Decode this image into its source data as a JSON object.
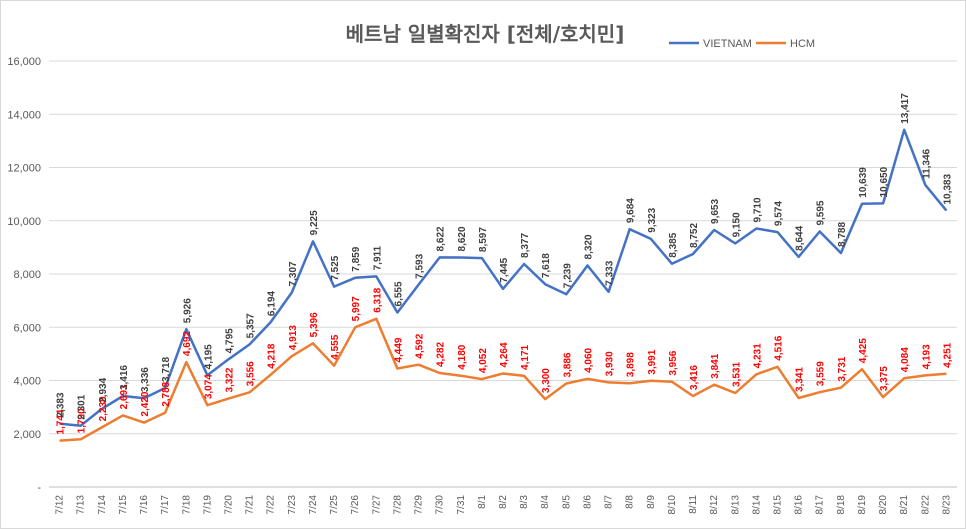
{
  "chart_data": {
    "type": "line",
    "title": "베트남  일별확진자 [전체/호치민]",
    "xlabel": "",
    "ylabel": "",
    "ylim": [
      0,
      16000
    ],
    "yticks": [
      "-",
      "2,000",
      "4,000",
      "6,000",
      "8,000",
      "10,000",
      "12,000",
      "14,000",
      "16,000"
    ],
    "grid": "horizontal",
    "legend_position": "top-right",
    "categories": [
      "7/12",
      "7/13",
      "7/14",
      "7/15",
      "7/16",
      "7/17",
      "7/18",
      "7/19",
      "7/20",
      "7/21",
      "7/22",
      "7/23",
      "7/24",
      "7/25",
      "7/26",
      "7/27",
      "7/28",
      "7/29",
      "7/30",
      "7/31",
      "8/1",
      "8/2",
      "8/3",
      "8/4",
      "8/5",
      "8/6",
      "8/7",
      "8/8",
      "8/9",
      "8/10",
      "8/11",
      "8/12",
      "8/13",
      "8/14",
      "8/15",
      "8/16",
      "8/17",
      "8/18",
      "8/19",
      "8/20",
      "8/21",
      "8/22",
      "8/23"
    ],
    "series": [
      {
        "name": "VIETNAM",
        "color": "#4472c4",
        "values": [
          2383,
          2301,
          2934,
          3416,
          3336,
          3718,
          5926,
          4195,
          4795,
          5357,
          6194,
          7307,
          9225,
          7525,
          7859,
          7911,
          6555,
          7593,
          8622,
          8620,
          8597,
          7445,
          8377,
          7618,
          7239,
          8320,
          7333,
          9684,
          9323,
          8385,
          8752,
          9653,
          9150,
          9710,
          9574,
          8644,
          9595,
          8788,
          10639,
          10650,
          13417,
          11346,
          10383
        ],
        "labels": [
          "2,383",
          "2,301",
          "2,934",
          "3,416",
          "3,336",
          "3,718",
          "5,926",
          "4,195",
          "4,795",
          "5,357",
          "6,194",
          "7,307",
          "9,225",
          "7,525",
          "7,859",
          "7,911",
          "6,555",
          "7,593",
          "8,622",
          "8,620",
          "8,597",
          "7,445",
          "8,377",
          "7,618",
          "7,239",
          "8,320",
          "7,333",
          "9,684",
          "9,323",
          "8,385",
          "8,752",
          "9,653",
          "9,150",
          "9,710",
          "9,574",
          "8,644",
          "9,595",
          "8,788",
          "10,639",
          "10,650",
          "13,417",
          "11,346",
          "10,383"
        ]
      },
      {
        "name": "HCM",
        "color": "#ed7d31",
        "values": [
          1744,
          1790,
          2239,
          2691,
          2420,
          2788,
          4692,
          3074,
          3322,
          3556,
          4218,
          4913,
          5396,
          4555,
          5997,
          6318,
          4449,
          4592,
          4282,
          4180,
          4052,
          4264,
          4171,
          3300,
          3886,
          4060,
          3930,
          3898,
          3991,
          3956,
          3416,
          3841,
          3531,
          4231,
          4516,
          3341,
          3559,
          3731,
          4425,
          3375,
          4084,
          4193,
          4251
        ],
        "labels": [
          "1,744",
          "1,790",
          "2,239",
          "2,691",
          "2,420",
          "2,788",
          "4,692",
          "3,074",
          "3,322",
          "3,556",
          "4,218",
          "4,913",
          "5,396",
          "4,555",
          "5,997",
          "6,318",
          "4,449",
          "4,592",
          "4,282",
          "4,180",
          "4,052",
          "4,264",
          "4,171",
          "3,300",
          "3,886",
          "4,060",
          "3,930",
          "3,898",
          "3,991",
          "3,956",
          "3,416",
          "3,841",
          "3,531",
          "4,231",
          "4,516",
          "3,341",
          "3,559",
          "3,731",
          "4,425",
          "3,375",
          "4,084",
          "4,193",
          "4,251"
        ]
      }
    ]
  }
}
